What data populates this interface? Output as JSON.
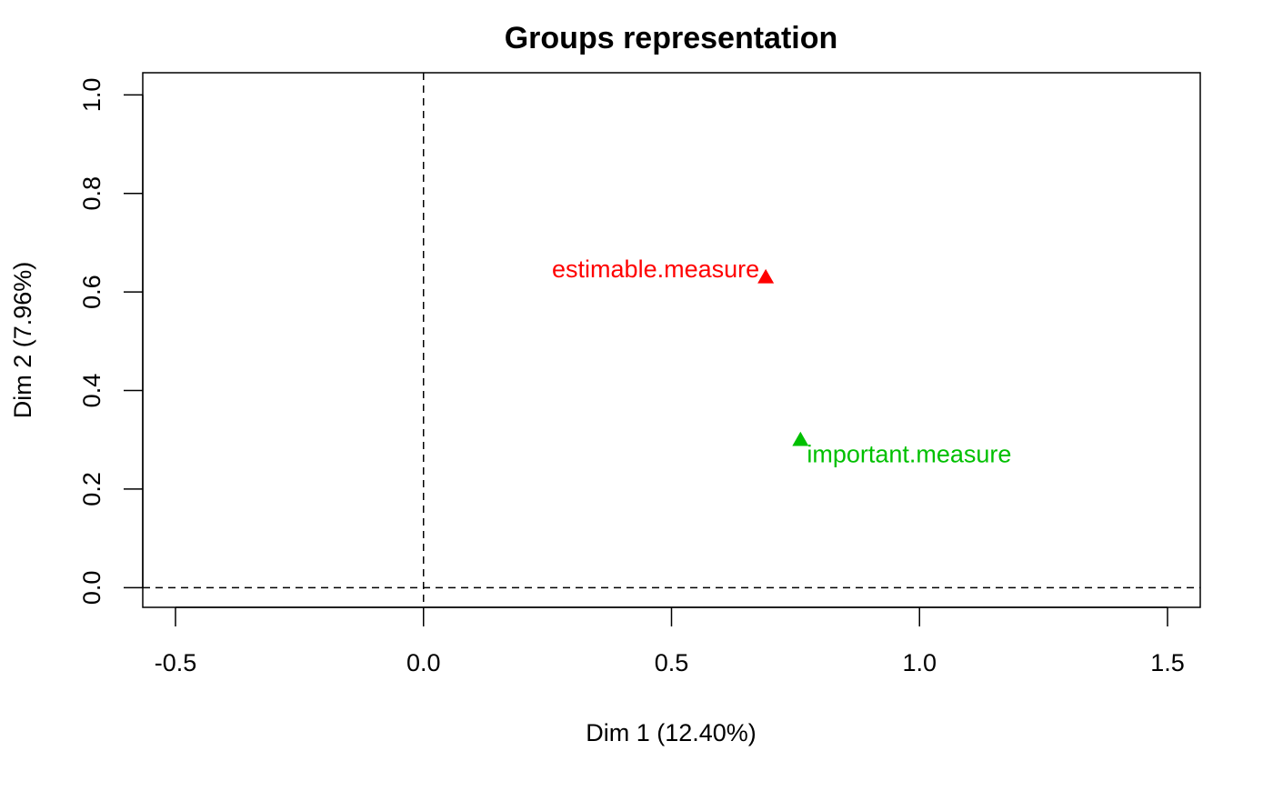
{
  "chart_data": {
    "type": "scatter",
    "title": "Groups representation",
    "xlabel": "Dim 1 (12.40%)",
    "ylabel": "Dim 2 (7.96%)",
    "xlim": [
      -0.566,
      1.566
    ],
    "ylim": [
      -0.04,
      1.045
    ],
    "x_ticks": [
      -0.5,
      0.0,
      0.5,
      1.0,
      1.5
    ],
    "x_tick_labels": [
      "-0.5",
      "0.0",
      "0.5",
      "1.0",
      "1.5"
    ],
    "y_ticks": [
      0.0,
      0.2,
      0.4,
      0.6,
      0.8,
      1.0
    ],
    "y_tick_labels": [
      "0.0",
      "0.2",
      "0.4",
      "0.6",
      "0.8",
      "1.0"
    ],
    "reference_lines": {
      "x": 0,
      "y": 0,
      "style": "dashed"
    },
    "grid": false,
    "marker": "triangle",
    "points": [
      {
        "label": "estimable.measure",
        "x": 0.69,
        "y": 0.63,
        "color": "#ff0000",
        "label_side": "left"
      },
      {
        "label": "important.measure",
        "x": 0.76,
        "y": 0.3,
        "color": "#00c000",
        "label_side": "below-right"
      }
    ]
  }
}
